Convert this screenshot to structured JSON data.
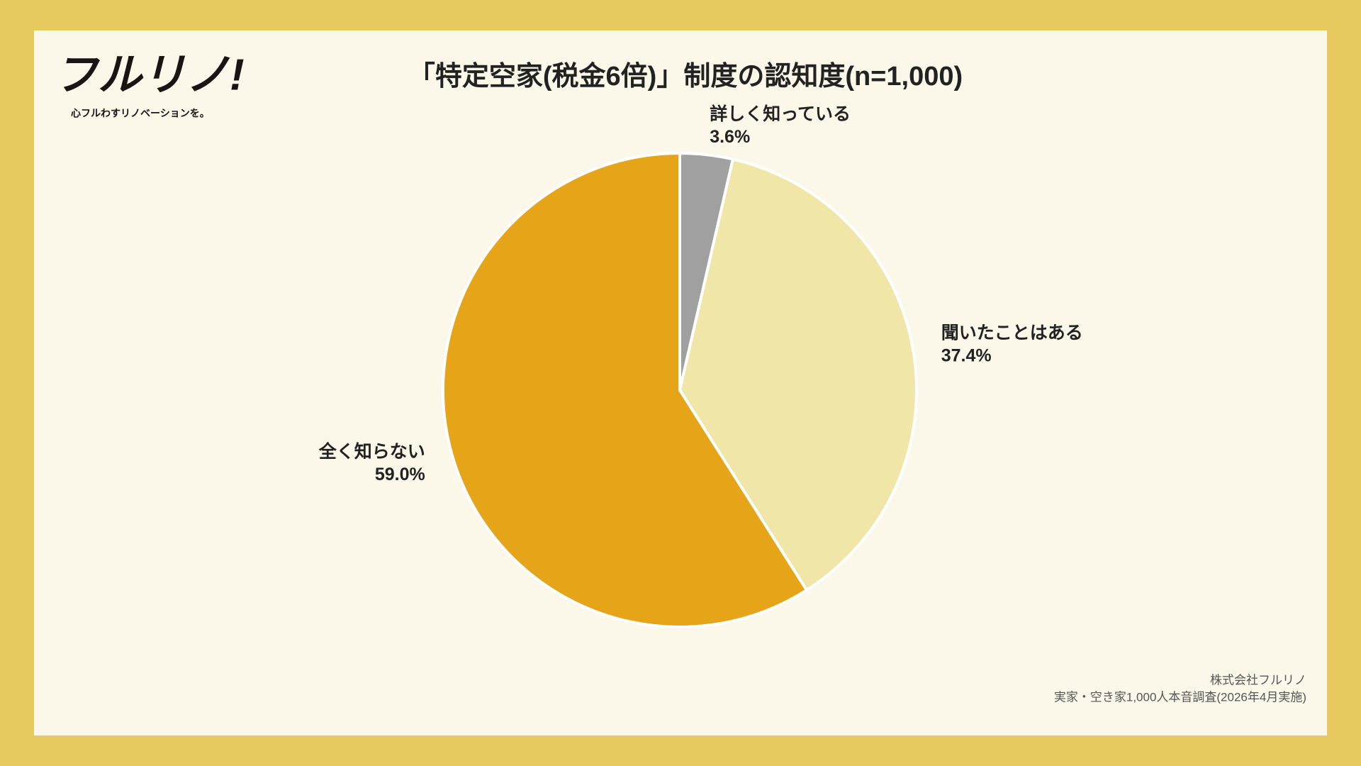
{
  "brand": {
    "logo": "フルリノ!",
    "tagline": "心フルわすリノベーションを。"
  },
  "chart_data": {
    "type": "pie",
    "title": "「特定空家(税金6倍)」制度の認知度(n=1,000)",
    "categories": [
      "詳しく知っている",
      "聞いたことはある",
      "全く知らない"
    ],
    "values": [
      3.6,
      37.4,
      59.0
    ],
    "value_labels": [
      "3.6%",
      "37.4%",
      "59.0%"
    ],
    "colors": [
      "#a0a0a0",
      "#f0e6a8",
      "#e6a419"
    ]
  },
  "footer": {
    "company": "株式会社フルリノ",
    "source": "実家・空き家1,000人本音調査(2026年4月実施)"
  }
}
